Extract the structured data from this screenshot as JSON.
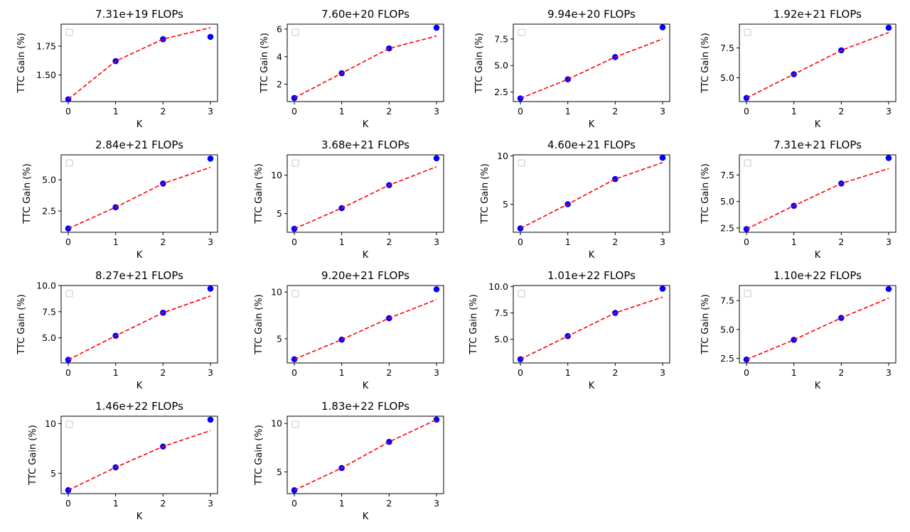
{
  "chart_data": [
    {
      "type": "scatter",
      "title": "7.31e+19 FLOPs",
      "xlabel": "K",
      "ylabel": "TTC Gain (%)",
      "x": [
        0,
        1,
        2,
        3
      ],
      "series": [
        {
          "name": "data",
          "values": [
            1.29,
            1.62,
            1.81,
            1.83
          ],
          "color": "#0000ff"
        },
        {
          "name": "fit",
          "values": [
            1.29,
            1.62,
            1.81,
            1.91
          ],
          "color": "#ff0000",
          "style": "dashed"
        }
      ],
      "xticks": [
        "0",
        "1",
        "2",
        "3"
      ],
      "yticks": [
        1.5,
        1.75
      ],
      "ytick_labels": [
        "1.50",
        "1.75"
      ],
      "ylim": [
        1.27,
        1.94
      ],
      "legend": "top-left (empty)"
    },
    {
      "type": "scatter",
      "title": "7.60e+20 FLOPs",
      "xlabel": "K",
      "ylabel": "TTC Gain (%)",
      "x": [
        0,
        1,
        2,
        3
      ],
      "series": [
        {
          "name": "data",
          "values": [
            1.0,
            2.8,
            4.6,
            6.1
          ],
          "color": "#0000ff"
        },
        {
          "name": "fit",
          "values": [
            1.0,
            2.8,
            4.6,
            5.5
          ],
          "color": "#ff0000",
          "style": "dashed"
        }
      ],
      "xticks": [
        "0",
        "1",
        "2",
        "3"
      ],
      "yticks": [
        2,
        4,
        6
      ],
      "ytick_labels": [
        "2",
        "4",
        "6"
      ],
      "ylim": [
        0.74,
        6.36
      ],
      "legend": "top-left (empty)"
    },
    {
      "type": "scatter",
      "title": "9.94e+20 FLOPs",
      "xlabel": "K",
      "ylabel": "TTC Gain (%)",
      "x": [
        0,
        1,
        2,
        3
      ],
      "series": [
        {
          "name": "data",
          "values": [
            1.9,
            3.7,
            5.8,
            8.6
          ],
          "color": "#0000ff"
        },
        {
          "name": "fit",
          "values": [
            1.9,
            3.7,
            5.8,
            7.5
          ],
          "color": "#ff0000",
          "style": "dashed"
        }
      ],
      "xticks": [
        "0",
        "1",
        "2",
        "3"
      ],
      "yticks": [
        2.5,
        5.0,
        7.5
      ],
      "ytick_labels": [
        "2.5",
        "5.0",
        "7.5"
      ],
      "ylim": [
        1.6,
        8.9
      ],
      "legend": "top-left (empty)"
    },
    {
      "type": "scatter",
      "title": "1.92e+21 FLOPs",
      "xlabel": "K",
      "ylabel": "TTC Gain (%)",
      "x": [
        0,
        1,
        2,
        3
      ],
      "series": [
        {
          "name": "data",
          "values": [
            3.3,
            5.3,
            7.3,
            9.2
          ],
          "color": "#0000ff"
        },
        {
          "name": "fit",
          "values": [
            3.3,
            5.3,
            7.3,
            8.8
          ],
          "color": "#ff0000",
          "style": "dashed"
        }
      ],
      "xticks": [
        "0",
        "1",
        "2",
        "3"
      ],
      "yticks": [
        5.0,
        7.5
      ],
      "ytick_labels": [
        "5.0",
        "7.5"
      ],
      "ylim": [
        3.0,
        9.5
      ],
      "legend": "top-left (empty)"
    },
    {
      "type": "scatter",
      "title": "2.84e+21 FLOPs",
      "xlabel": "K",
      "ylabel": "TTC Gain (%)",
      "x": [
        0,
        1,
        2,
        3
      ],
      "series": [
        {
          "name": "data",
          "values": [
            1.1,
            2.8,
            4.7,
            6.7
          ],
          "color": "#0000ff"
        },
        {
          "name": "fit",
          "values": [
            1.1,
            2.8,
            4.7,
            6.0
          ],
          "color": "#ff0000",
          "style": "dashed"
        }
      ],
      "xticks": [
        "0",
        "1",
        "2",
        "3"
      ],
      "yticks": [
        2.5,
        5.0
      ],
      "ytick_labels": [
        "2.5",
        "5.0"
      ],
      "ylim": [
        0.8,
        7.0
      ],
      "legend": "top-left (empty)"
    },
    {
      "type": "scatter",
      "title": "3.68e+21 FLOPs",
      "xlabel": "K",
      "ylabel": "TTC Gain (%)",
      "x": [
        0,
        1,
        2,
        3
      ],
      "series": [
        {
          "name": "data",
          "values": [
            3.0,
            5.7,
            8.7,
            12.2
          ],
          "color": "#0000ff"
        },
        {
          "name": "fit",
          "values": [
            3.0,
            5.7,
            8.7,
            11.1
          ],
          "color": "#ff0000",
          "style": "dashed"
        }
      ],
      "xticks": [
        "0",
        "1",
        "2",
        "3"
      ],
      "yticks": [
        5,
        10
      ],
      "ytick_labels": [
        "5",
        "10"
      ],
      "ylim": [
        2.55,
        12.65
      ],
      "legend": "top-left (empty)"
    },
    {
      "type": "scatter",
      "title": "4.60e+21 FLOPs",
      "xlabel": "K",
      "ylabel": "TTC Gain (%)",
      "x": [
        0,
        1,
        2,
        3
      ],
      "series": [
        {
          "name": "data",
          "values": [
            2.5,
            5.0,
            7.6,
            9.8
          ],
          "color": "#0000ff"
        },
        {
          "name": "fit",
          "values": [
            2.5,
            5.0,
            7.6,
            9.3
          ],
          "color": "#ff0000",
          "style": "dashed"
        }
      ],
      "xticks": [
        "0",
        "1",
        "2",
        "3"
      ],
      "yticks": [
        5,
        10
      ],
      "ytick_labels": [
        "5",
        "10"
      ],
      "ylim": [
        2.1,
        10.1
      ],
      "legend": "top-left (empty)"
    },
    {
      "type": "scatter",
      "title": "7.31e+21 FLOPs",
      "xlabel": "K",
      "ylabel": "TTC Gain (%)",
      "x": [
        0,
        1,
        2,
        3
      ],
      "series": [
        {
          "name": "data",
          "values": [
            2.4,
            4.6,
            6.7,
            9.1
          ],
          "color": "#0000ff"
        },
        {
          "name": "fit",
          "values": [
            2.4,
            4.6,
            6.7,
            8.1
          ],
          "color": "#ff0000",
          "style": "dashed"
        }
      ],
      "xticks": [
        "0",
        "1",
        "2",
        "3"
      ],
      "yticks": [
        2.5,
        5.0,
        7.5
      ],
      "ytick_labels": [
        "2.5",
        "5.0",
        "7.5"
      ],
      "ylim": [
        2.1,
        9.4
      ],
      "legend": "top-left (empty)"
    },
    {
      "type": "scatter",
      "title": "8.27e+21 FLOPs",
      "xlabel": "K",
      "ylabel": "TTC Gain (%)",
      "x": [
        0,
        1,
        2,
        3
      ],
      "series": [
        {
          "name": "data",
          "values": [
            2.9,
            5.2,
            7.4,
            9.7
          ],
          "color": "#0000ff"
        },
        {
          "name": "fit",
          "values": [
            2.9,
            5.2,
            7.4,
            9.0
          ],
          "color": "#ff0000",
          "style": "dashed"
        }
      ],
      "xticks": [
        "0",
        "1",
        "2",
        "3"
      ],
      "yticks": [
        5.0,
        7.5,
        10.0
      ],
      "ytick_labels": [
        "5.0",
        "7.5",
        "10.0"
      ],
      "ylim": [
        2.6,
        10.0
      ],
      "legend": "top-left (empty)"
    },
    {
      "type": "scatter",
      "title": "9.20e+21 FLOPs",
      "xlabel": "K",
      "ylabel": "TTC Gain (%)",
      "x": [
        0,
        1,
        2,
        3
      ],
      "series": [
        {
          "name": "data",
          "values": [
            2.8,
            4.9,
            7.2,
            10.3
          ],
          "color": "#0000ff"
        },
        {
          "name": "fit",
          "values": [
            2.8,
            4.9,
            7.2,
            9.2
          ],
          "color": "#ff0000",
          "style": "dashed"
        }
      ],
      "xticks": [
        "0",
        "1",
        "2",
        "3"
      ],
      "yticks": [
        5,
        10
      ],
      "ytick_labels": [
        "5",
        "10"
      ],
      "ylim": [
        2.4,
        10.7
      ],
      "legend": "top-left (empty)"
    },
    {
      "type": "scatter",
      "title": "1.01e+22 FLOPs",
      "xlabel": "K",
      "ylabel": "TTC Gain (%)",
      "x": [
        0,
        1,
        2,
        3
      ],
      "series": [
        {
          "name": "data",
          "values": [
            3.1,
            5.3,
            7.5,
            9.8
          ],
          "color": "#0000ff"
        },
        {
          "name": "fit",
          "values": [
            3.1,
            5.3,
            7.5,
            9.0
          ],
          "color": "#ff0000",
          "style": "dashed"
        }
      ],
      "xticks": [
        "0",
        "1",
        "2",
        "3"
      ],
      "yticks": [
        5.0,
        7.5,
        10.0
      ],
      "ytick_labels": [
        "5.0",
        "7.5",
        "10.0"
      ],
      "ylim": [
        2.75,
        10.1
      ],
      "legend": "top-left (empty)"
    },
    {
      "type": "scatter",
      "title": "1.10e+22 FLOPs",
      "xlabel": "K",
      "ylabel": "TTC Gain (%)",
      "x": [
        0,
        1,
        2,
        3
      ],
      "series": [
        {
          "name": "data",
          "values": [
            2.4,
            4.1,
            6.0,
            8.5
          ],
          "color": "#0000ff"
        },
        {
          "name": "fit",
          "values": [
            2.4,
            4.1,
            6.0,
            7.7
          ],
          "color": "#ff0000",
          "style": "dashed"
        }
      ],
      "xticks": [
        "0",
        "1",
        "2",
        "3"
      ],
      "yticks": [
        2.5,
        5.0,
        7.5
      ],
      "ytick_labels": [
        "2.5",
        "5.0",
        "7.5"
      ],
      "ylim": [
        2.1,
        8.8
      ],
      "legend": "top-left (empty)"
    },
    {
      "type": "scatter",
      "title": "1.46e+22 FLOPs",
      "xlabel": "K",
      "ylabel": "TTC Gain (%)",
      "x": [
        0,
        1,
        2,
        3
      ],
      "series": [
        {
          "name": "data",
          "values": [
            3.3,
            5.6,
            7.7,
            10.4
          ],
          "color": "#0000ff"
        },
        {
          "name": "fit",
          "values": [
            3.3,
            5.6,
            7.7,
            9.3
          ],
          "color": "#ff0000",
          "style": "dashed"
        }
      ],
      "xticks": [
        "0",
        "1",
        "2",
        "3"
      ],
      "yticks": [
        5,
        10
      ],
      "ytick_labels": [
        "5",
        "10"
      ],
      "ylim": [
        2.95,
        10.75
      ],
      "legend": "top-left (empty)"
    },
    {
      "type": "scatter",
      "title": "1.83e+22 FLOPs",
      "xlabel": "K",
      "ylabel": "TTC Gain (%)",
      "x": [
        0,
        1,
        2,
        3
      ],
      "series": [
        {
          "name": "data",
          "values": [
            3.1,
            5.4,
            8.1,
            10.4
          ],
          "color": "#0000ff"
        },
        {
          "name": "fit",
          "values": [
            3.1,
            5.4,
            8.1,
            10.4
          ],
          "color": "#ff0000",
          "style": "dashed"
        }
      ],
      "xticks": [
        "0",
        "1",
        "2",
        "3"
      ],
      "yticks": [
        5,
        10
      ],
      "ytick_labels": [
        "5",
        "10"
      ],
      "ylim": [
        2.75,
        10.75
      ],
      "legend": "top-left (empty)"
    }
  ]
}
